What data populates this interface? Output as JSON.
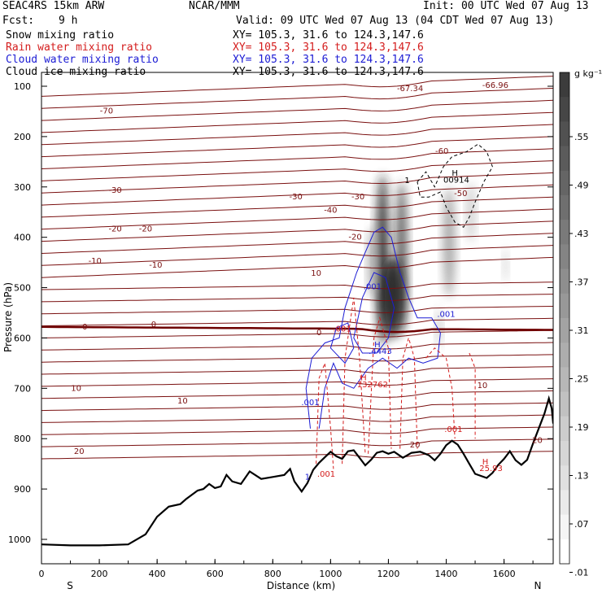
{
  "header": {
    "model": "SEAC4RS 15km ARW",
    "producer": "NCAR/MMM",
    "init": "Init: 00 UTC Wed 07 Aug 13",
    "fcst_label": "Fcst:",
    "fcst_value": "9 h",
    "valid": "Valid: 09 UTC Wed 07 Aug 13 (04 CDT Wed 07 Aug 13)",
    "lines": [
      {
        "name": "Snow mixing ratio",
        "xy": "XY= 105.3, 31.6 to 124.3,147.6",
        "color": "#000000"
      },
      {
        "name": "Rain water mixing ratio",
        "xy": "XY= 105.3, 31.6 to 124.3,147.6",
        "color": "#d41c1c"
      },
      {
        "name": "Cloud water mixing ratio",
        "xy": "XY= 105.3, 31.6 to 124.3,147.6",
        "color": "#1c1cd4"
      },
      {
        "name": "Cloud ice mixing ratio",
        "xy": "XY= 105.3, 31.6 to 124.3,147.6",
        "color": "#000000"
      }
    ]
  },
  "chart_data": {
    "type": "contour",
    "xlabel": "Distance (km)",
    "ylabel": "Pressure (hPa)",
    "xlim": [
      0,
      1770
    ],
    "ylim": [
      1050,
      100
    ],
    "x_ticks": [
      0,
      200,
      400,
      600,
      800,
      1000,
      1200,
      1400,
      1600
    ],
    "y_ticks": [
      100,
      200,
      300,
      400,
      500,
      600,
      700,
      800,
      900,
      1000
    ],
    "x_end_labels": {
      "left": "S",
      "right": "N"
    },
    "colorbar": {
      "unit": "g kg⁻¹",
      "labels": [
        ".55",
        ".49",
        ".43",
        ".37",
        ".31",
        ".25",
        ".19",
        ".13",
        ".07",
        ".01"
      ]
    },
    "temperature_contours": [
      {
        "label": "-70",
        "x": 225,
        "p": 148
      },
      {
        "label": "-60",
        "x": 1385,
        "p": 228
      },
      {
        "label": "-50",
        "x": 1450,
        "p": 312
      },
      {
        "label": "-40",
        "x": 1000,
        "p": 345
      },
      {
        "label": "-30",
        "x": 255,
        "p": 305
      },
      {
        "label": "-30",
        "x": 880,
        "p": 318
      },
      {
        "label": "-30",
        "x": 1095,
        "p": 318
      },
      {
        "label": "-20",
        "x": 255,
        "p": 382
      },
      {
        "label": "-20",
        "x": 360,
        "p": 382
      },
      {
        "label": "-20",
        "x": 1085,
        "p": 398
      },
      {
        "label": "-10",
        "x": 185,
        "p": 446
      },
      {
        "label": "-10",
        "x": 395,
        "p": 454
      },
      {
        "label": "10",
        "x": 950,
        "p": 470
      },
      {
        "label": "0",
        "x": 150,
        "p": 577
      },
      {
        "label": "0",
        "x": 388,
        "p": 572
      },
      {
        "label": "0",
        "x": 960,
        "p": 588
      },
      {
        "label": "10",
        "x": 120,
        "p": 699
      },
      {
        "label": "10",
        "x": 488,
        "p": 724
      },
      {
        "label": "10",
        "x": 1525,
        "p": 693
      },
      {
        "label": "20",
        "x": 130,
        "p": 824
      },
      {
        "label": "20",
        "x": 1292,
        "p": 811
      },
      {
        "label": "20",
        "x": 1715,
        "p": 802
      },
      {
        "label": "-66.96",
        "x": 1570,
        "p": 97
      },
      {
        "label": "-67.34",
        "x": 1275,
        "p": 103
      }
    ],
    "field_labels": [
      {
        "text": "H",
        "x": 1430,
        "p": 271,
        "color": "#000000"
      },
      {
        "text": "00914",
        "x": 1435,
        "p": 285,
        "color": "#000000"
      },
      {
        "text": "1",
        "x": 1265,
        "p": 286,
        "color": "#000000"
      },
      {
        "text": ".001",
        "x": 1145,
        "p": 497,
        "color": "#1c1cd4"
      },
      {
        "text": ".001",
        "x": 1400,
        "p": 552,
        "color": "#1c1cd4"
      },
      {
        "text": ".001",
        "x": 1040,
        "p": 581,
        "color": "#d41c1c"
      },
      {
        "text": "H",
        "x": 1162,
        "p": 612,
        "color": "#1c1cd4"
      },
      {
        "text": ".4443",
        "x": 1172,
        "p": 625,
        "color": "#1c1cd4"
      },
      {
        "text": "H",
        "x": 1114,
        "p": 678,
        "color": "#d41c1c"
      },
      {
        "text": "132762",
        "x": 1145,
        "p": 691,
        "color": "#d41c1c"
      },
      {
        "text": ".001",
        "x": 930,
        "p": 727,
        "color": "#1c1cd4"
      },
      {
        "text": ".001",
        "x": 1425,
        "p": 780,
        "color": "#d41c1c"
      },
      {
        "text": "H",
        "x": 1535,
        "p": 845,
        "color": "#d41c1c"
      },
      {
        "text": "25.93",
        "x": 1555,
        "p": 858,
        "color": "#d41c1c"
      },
      {
        "text": ".001",
        "x": 985,
        "p": 869,
        "color": "#d41c1c"
      },
      {
        "text": "1",
        "x": 920,
        "p": 875,
        "color": "#1c1cd4"
      }
    ],
    "terrain": [
      [
        0,
        1010
      ],
      [
        100,
        1012
      ],
      [
        200,
        1012
      ],
      [
        300,
        1010
      ],
      [
        360,
        990
      ],
      [
        400,
        955
      ],
      [
        440,
        935
      ],
      [
        480,
        930
      ],
      [
        500,
        920
      ],
      [
        540,
        903
      ],
      [
        560,
        900
      ],
      [
        580,
        890
      ],
      [
        600,
        898
      ],
      [
        620,
        895
      ],
      [
        640,
        872
      ],
      [
        660,
        885
      ],
      [
        690,
        890
      ],
      [
        720,
        865
      ],
      [
        760,
        880
      ],
      [
        800,
        876
      ],
      [
        840,
        872
      ],
      [
        860,
        860
      ],
      [
        875,
        885
      ],
      [
        900,
        905
      ],
      [
        920,
        888
      ],
      [
        940,
        862
      ],
      [
        960,
        848
      ],
      [
        980,
        837
      ],
      [
        1000,
        826
      ],
      [
        1020,
        835
      ],
      [
        1040,
        840
      ],
      [
        1060,
        825
      ],
      [
        1080,
        823
      ],
      [
        1100,
        838
      ],
      [
        1120,
        853
      ],
      [
        1140,
        842
      ],
      [
        1160,
        828
      ],
      [
        1180,
        825
      ],
      [
        1200,
        830
      ],
      [
        1220,
        826
      ],
      [
        1250,
        838
      ],
      [
        1280,
        828
      ],
      [
        1310,
        826
      ],
      [
        1340,
        833
      ],
      [
        1360,
        843
      ],
      [
        1380,
        830
      ],
      [
        1400,
        813
      ],
      [
        1420,
        804
      ],
      [
        1440,
        812
      ],
      [
        1460,
        830
      ],
      [
        1480,
        850
      ],
      [
        1500,
        870
      ],
      [
        1540,
        878
      ],
      [
        1560,
        868
      ],
      [
        1580,
        852
      ],
      [
        1600,
        840
      ],
      [
        1620,
        825
      ],
      [
        1640,
        843
      ],
      [
        1660,
        852
      ],
      [
        1680,
        842
      ],
      [
        1700,
        810
      ],
      [
        1720,
        780
      ],
      [
        1740,
        750
      ],
      [
        1755,
        720
      ],
      [
        1765,
        740
      ],
      [
        1770,
        770
      ]
    ],
    "snow_blobs": [
      {
        "x": 1180,
        "p": 445,
        "rx": 22,
        "rp": 170,
        "v": 0.5
      },
      {
        "x": 1245,
        "p": 440,
        "rx": 20,
        "rp": 150,
        "v": 0.4
      },
      {
        "x": 1215,
        "p": 520,
        "rx": 40,
        "rp": 80,
        "v": 0.55
      },
      {
        "x": 1145,
        "p": 450,
        "rx": 15,
        "rp": 70,
        "v": 0.2
      },
      {
        "x": 1410,
        "p": 410,
        "rx": 20,
        "rp": 110,
        "v": 0.2
      },
      {
        "x": 1485,
        "p": 350,
        "rx": 14,
        "rp": 60,
        "v": 0.1
      },
      {
        "x": 1605,
        "p": 455,
        "rx": 8,
        "rp": 35,
        "v": 0.08
      },
      {
        "x": 1375,
        "p": 580,
        "rx": 10,
        "rp": 40,
        "v": 0.1
      }
    ]
  }
}
